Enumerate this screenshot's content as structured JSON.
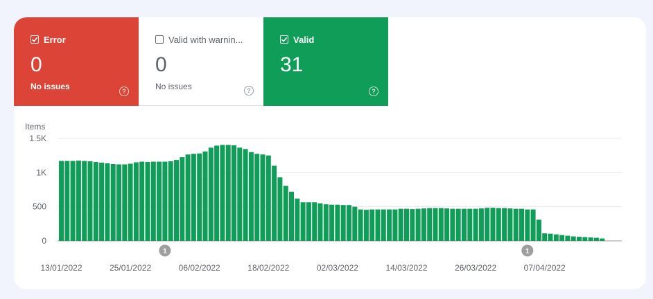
{
  "tiles": [
    {
      "label": "Error",
      "count": "0",
      "sub": "No issues",
      "checked": true,
      "help": "?"
    },
    {
      "label": "Valid with warnin...",
      "count": "0",
      "sub": "No issues",
      "checked": false,
      "help": "?"
    },
    {
      "label": "Valid",
      "count": "31",
      "sub": "",
      "checked": true,
      "help": "?"
    }
  ],
  "colors": {
    "error": "#db4437",
    "valid": "#0f9d58",
    "warning": "#ffffff"
  },
  "icons": {
    "checkbox_checked": "check-icon",
    "help": "help-circle-icon"
  },
  "chart_data": {
    "type": "bar",
    "ylabel": "Items",
    "ylim": [
      0,
      1500
    ],
    "yticks": [
      {
        "value": 0,
        "label": "0"
      },
      {
        "value": 500,
        "label": "500"
      },
      {
        "value": 1000,
        "label": "1K"
      },
      {
        "value": 1500,
        "label": "1.5K"
      }
    ],
    "grid": true,
    "xtick_labels": [
      "13/01/2022",
      "25/01/2022",
      "06/02/2022",
      "18/02/2022",
      "02/03/2022",
      "14/03/2022",
      "26/03/2022",
      "07/04/2022"
    ],
    "first_date": "13/01/2022",
    "series": [
      {
        "color": "#0f9d58",
        "values": [
          1170,
          1170,
          1170,
          1175,
          1170,
          1165,
          1155,
          1145,
          1135,
          1125,
          1120,
          1120,
          1130,
          1150,
          1160,
          1155,
          1160,
          1160,
          1160,
          1165,
          1185,
          1225,
          1265,
          1275,
          1280,
          1310,
          1365,
          1395,
          1405,
          1405,
          1400,
          1365,
          1345,
          1300,
          1275,
          1265,
          1250,
          1100,
          930,
          805,
          720,
          620,
          565,
          565,
          565,
          550,
          535,
          530,
          530,
          525,
          525,
          500,
          460,
          455,
          460,
          460,
          460,
          460,
          460,
          470,
          470,
          465,
          470,
          475,
          480,
          480,
          480,
          475,
          470,
          470,
          470,
          470,
          470,
          475,
          485,
          485,
          480,
          480,
          475,
          470,
          470,
          460,
          460,
          310,
          110,
          105,
          95,
          85,
          75,
          65,
          60,
          55,
          50,
          45,
          35
        ]
      }
    ],
    "annotations": [
      {
        "date": "31/01/2022",
        "label": "1"
      },
      {
        "date": "04/04/2022",
        "label": "1"
      }
    ]
  }
}
